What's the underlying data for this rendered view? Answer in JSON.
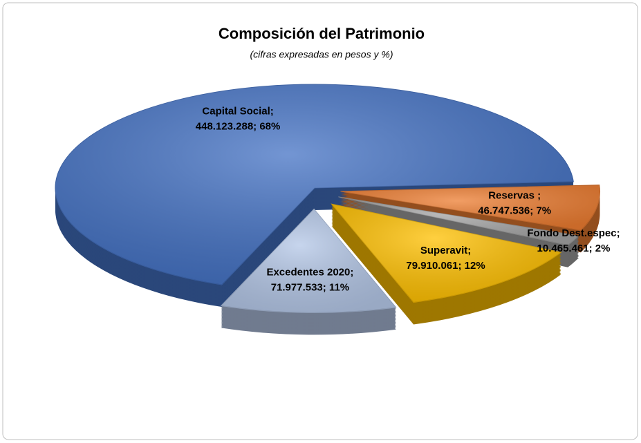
{
  "chart_data": {
    "type": "pie3d",
    "title": "Composición del Patrimonio",
    "subtitle": "(cifras expresadas en pesos y %)",
    "categories": [
      "Capital Social;",
      "Reservas ;",
      "Fondo Dest.espec;",
      "Superavit;",
      "Excedentes 2020;"
    ],
    "values": [
      448123288,
      46747536,
      10465461,
      79910061,
      71977533
    ],
    "value_labels": [
      "448.123.288; 68%",
      "46.747.536; 7%",
      "10.465.461; 2%",
      "79.910.061; 12%",
      "71.977.533; 11%"
    ],
    "colors": [
      "#4472c4",
      "#ed7d31",
      "#a5a5a5",
      "#ffc000",
      "#b4c7e7"
    ]
  }
}
